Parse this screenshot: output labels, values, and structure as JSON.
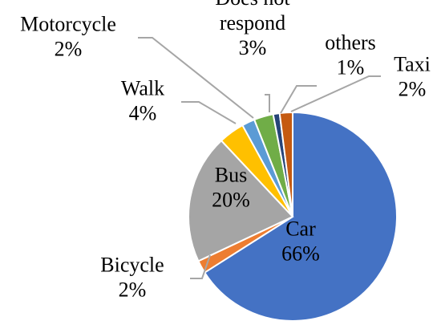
{
  "chart_data": {
    "type": "pie",
    "title": "",
    "slices": [
      {
        "label": "Car",
        "value": 66,
        "value_label": "66%",
        "color": "#4472C4"
      },
      {
        "label": "Bicycle",
        "value": 2,
        "value_label": "2%",
        "color": "#ED7D31"
      },
      {
        "label": "Bus",
        "value": 20,
        "value_label": "20%",
        "color": "#A5A5A5"
      },
      {
        "label": "Walk",
        "value": 4,
        "value_label": "4%",
        "color": "#FFC000"
      },
      {
        "label": "Motorcycle",
        "value": 2,
        "value_label": "2%",
        "color": "#5B9BD5"
      },
      {
        "label": "Does not respond",
        "value": 3,
        "value_label": "3%",
        "color": "#70AD47"
      },
      {
        "label": "others",
        "value": 1,
        "value_label": "1%",
        "color": "#264478"
      },
      {
        "label": "Taxi",
        "value": 2,
        "value_label": "2%",
        "color": "#C55A11"
      }
    ],
    "label_lines": {
      "Does not respond": [
        "Does not",
        "respond"
      ]
    },
    "legend": "none",
    "start_angle_deg": 0,
    "direction": "clockwise"
  }
}
